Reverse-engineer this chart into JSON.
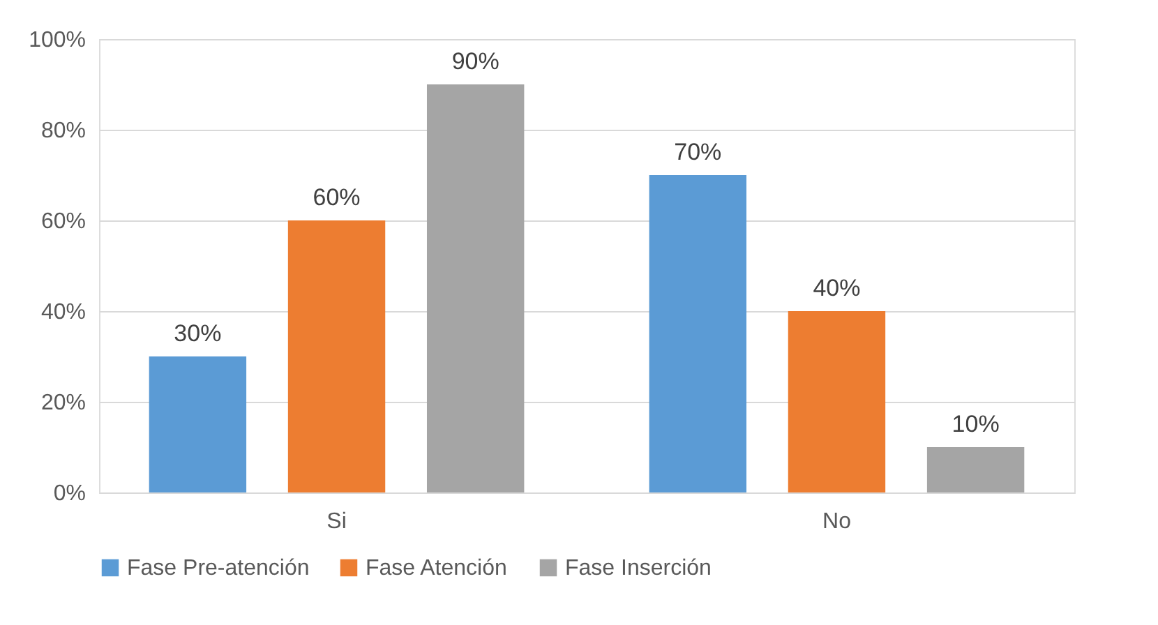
{
  "chart_data": {
    "type": "bar",
    "categories": [
      "Si",
      "No"
    ],
    "series": [
      {
        "name": "Fase Pre-atención",
        "color": "#5b9bd5",
        "values": [
          30,
          70
        ],
        "value_labels": [
          "30%",
          "70%"
        ]
      },
      {
        "name": "Fase Atención",
        "color": "#ed7d31",
        "values": [
          60,
          40
        ],
        "value_labels": [
          "60%",
          "40%"
        ]
      },
      {
        "name": "Fase Inserción",
        "color": "#a5a5a5",
        "values": [
          90,
          10
        ],
        "value_labels": [
          "90%",
          "10%"
        ]
      }
    ],
    "ylim": [
      0,
      100
    ],
    "yticks": [
      {
        "value": 0,
        "label": "0%"
      },
      {
        "value": 20,
        "label": "20%"
      },
      {
        "value": 40,
        "label": "40%"
      },
      {
        "value": 60,
        "label": "60%"
      },
      {
        "value": 80,
        "label": "80%"
      },
      {
        "value": 100,
        "label": "100%"
      }
    ],
    "grid": "y",
    "legend": "bottom"
  }
}
